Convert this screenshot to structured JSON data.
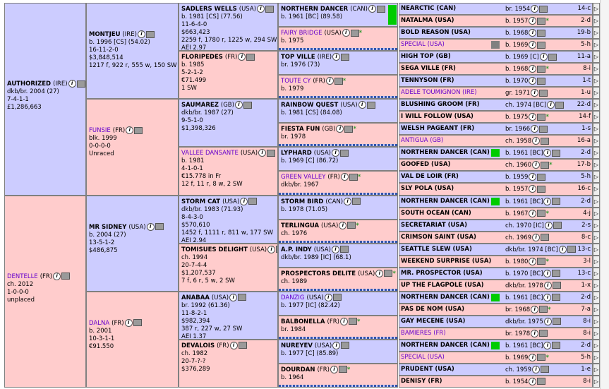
{
  "gen1": [
    {
      "name": "AUTHORIZED",
      "country": "(IRE)",
      "lines": [
        "dkb/br. 2004 (27)",
        "7-4-1-1",
        "£1,286,663"
      ],
      "sex": "m",
      "link": false
    },
    {
      "name": "DENTELLE",
      "country": "(FR)",
      "lines": [
        "ch. 2012",
        "1-0-0-0",
        "unplaced"
      ],
      "sex": "f",
      "link": true
    }
  ],
  "gen2": [
    {
      "name": "MONTJEU",
      "country": "(IRE)",
      "lines": [
        "b. 1996 [CS] (54.02)",
        "16-11-2-0",
        "$3,848,514",
        "1217 f, 922 r, 555 w, 150 SW"
      ],
      "sex": "m",
      "link": false
    },
    {
      "name": "FUNSIE",
      "country": "(FR)",
      "lines": [
        "blk. 1999",
        "0-0-0-0",
        "Unraced"
      ],
      "sex": "f",
      "link": true
    },
    {
      "name": "MR SIDNEY",
      "country": "(USA)",
      "lines": [
        "b. 2004 (27)",
        "13-5-1-2",
        "$486,875"
      ],
      "sex": "m",
      "link": false
    },
    {
      "name": "DALNA",
      "country": "(FR)",
      "lines": [
        "b. 2001",
        "10-3-1-1",
        "€91.550"
      ],
      "sex": "f",
      "link": true
    }
  ],
  "gen3": [
    {
      "name": "SADLERS WELLS",
      "country": "(USA)",
      "lines": [
        "b. 1981 [CS] (77.56)",
        "11-6-4-0",
        "$663,423",
        "2259 f, 1780 r, 1225 w, 294 SW",
        "AEI 2.97"
      ],
      "sex": "m",
      "link": false
    },
    {
      "name": "FLORIPEDES",
      "country": "(FR)",
      "lines": [
        "b. 1985",
        "5-2-1-2",
        "€71.499",
        "1 SW"
      ],
      "sex": "f",
      "link": false
    },
    {
      "name": "SAUMAREZ",
      "country": "(GB)",
      "lines": [
        "dkb/br. 1987 (27)",
        "9-5-1-0",
        "$1,398,326"
      ],
      "sex": "m",
      "link": false
    },
    {
      "name": "VALLEE DANSANTE",
      "country": "(USA)",
      "lines": [
        "b. 1981",
        "4-1-0-1",
        "€15.778 in Fr",
        "12 f, 11 r, 8 w, 2 SW"
      ],
      "sex": "f",
      "link": true
    },
    {
      "name": "STORM CAT",
      "country": "(USA)",
      "lines": [
        "dkb/br. 1983 (71.93)",
        "8-4-3-0",
        "$570,610",
        "1452 f, 1111 r, 811 w, 177 SW",
        "AEI 2.94"
      ],
      "sex": "m",
      "link": false
    },
    {
      "name": "TOMISUES DELIGHT",
      "country": "(USA)",
      "lines": [
        "ch. 1994",
        "20-7-4-4",
        "$1,207,537",
        "7 f, 6 r, 5 w, 2 SW"
      ],
      "sex": "f",
      "link": false
    },
    {
      "name": "ANABAA",
      "country": "(USA)",
      "lines": [
        "br. 1992 (61.36)",
        "11-8-2-1",
        "$982,394",
        "387 r, 227 w, 27 SW",
        "AEI 1.37"
      ],
      "sex": "m",
      "link": false
    },
    {
      "name": "DEVALOIS",
      "country": "(FR)",
      "lines": [
        "ch. 1982",
        "20-7-?-?",
        "$376,289"
      ],
      "sex": "f",
      "link": false
    }
  ],
  "gen4": [
    {
      "name": "NORTHERN DANCER",
      "country": "(CAN)",
      "lines": [
        "b. 1961 [BC] (89.58)"
      ],
      "sex": "m",
      "link": false,
      "green": true
    },
    {
      "name": "FAIRY BRIDGE",
      "country": "(USA)",
      "lines": [
        "b. 1975"
      ],
      "sex": "f",
      "link": true
    },
    {
      "name": "TOP VILLE",
      "country": "(IRE)",
      "lines": [
        "br. 1976 (73)"
      ],
      "sex": "m",
      "link": false
    },
    {
      "name": "TOUTE CY",
      "country": "(FR)",
      "lines": [
        "b. 1979"
      ],
      "sex": "f",
      "link": true
    },
    {
      "name": "RAINBOW QUEST",
      "country": "(USA)",
      "lines": [
        "b. 1981 [CS] (84.08)"
      ],
      "sex": "m",
      "link": false
    },
    {
      "name": "FIESTA FUN",
      "country": "(GB)",
      "lines": [
        "br. 1978"
      ],
      "sex": "f",
      "link": false
    },
    {
      "name": "LYPHARD",
      "country": "(USA)",
      "lines": [
        "b. 1969 [C] (86.72)"
      ],
      "sex": "m",
      "link": false
    },
    {
      "name": "GREEN VALLEY",
      "country": "(FR)",
      "lines": [
        "dkb/br. 1967"
      ],
      "sex": "f",
      "link": true
    },
    {
      "name": "STORM BIRD",
      "country": "(CAN)",
      "lines": [
        "b. 1978 (71.05)"
      ],
      "sex": "m",
      "link": false
    },
    {
      "name": "TERLINGUA",
      "country": "(USA)",
      "lines": [
        "ch. 1976"
      ],
      "sex": "f",
      "link": false
    },
    {
      "name": "A.P. INDY",
      "country": "(USA)",
      "lines": [
        "dkb/br. 1989 [IC] (68.1)"
      ],
      "sex": "m",
      "link": false
    },
    {
      "name": "PROSPECTORS DELITE",
      "country": "(USA)",
      "lines": [
        "ch. 1989"
      ],
      "sex": "f",
      "link": false
    },
    {
      "name": "DANZIG",
      "country": "(USA)",
      "lines": [
        "b. 1977 [IC] (82.42)"
      ],
      "sex": "m",
      "link": true
    },
    {
      "name": "BALBONELLA",
      "country": "(FR)",
      "lines": [
        "br. 1984"
      ],
      "sex": "f",
      "link": false
    },
    {
      "name": "NUREYEV",
      "country": "(USA)",
      "lines": [
        "b. 1977 [C] (85.89)"
      ],
      "sex": "m",
      "link": false
    },
    {
      "name": "DOURDAN",
      "country": "(FR)",
      "lines": [
        "b. 1964"
      ],
      "sex": "f",
      "link": false
    }
  ],
  "gen5": [
    {
      "name": "NEARCTIC (CAN)",
      "year": "br. 1954",
      "fam": "14-c",
      "sex": "m"
    },
    {
      "name": "NATALMA (USA)",
      "year": "b. 1957",
      "fam": "2-d",
      "sex": "f"
    },
    {
      "name": "BOLD REASON (USA)",
      "year": "b. 1968",
      "fam": "19-b",
      "sex": "m"
    },
    {
      "name": "SPECIAL (USA)",
      "year": "b. 1969",
      "fam": "5-h",
      "sex": "f",
      "link": true
    },
    {
      "name": "HIGH TOP (GB)",
      "year": "b. 1969 [C]",
      "fam": "11-a",
      "sex": "m"
    },
    {
      "name": "SEGA VILLE (FR)",
      "year": "b. 1968",
      "fam": "8-i",
      "sex": "f"
    },
    {
      "name": "TENNYSON (FR)",
      "year": "b. 1970",
      "fam": "1-t",
      "sex": "m"
    },
    {
      "name": "ADELE TOUMIGNON (IRE)",
      "year": "gr. 1971",
      "fam": "1-u",
      "sex": "f",
      "link": true
    },
    {
      "name": "BLUSHING GROOM (FR)",
      "year": "ch. 1974 [BC]",
      "fam": "22-d",
      "sex": "m"
    },
    {
      "name": "I WILL FOLLOW (USA)",
      "year": "b. 1975",
      "fam": "14-f",
      "sex": "f"
    },
    {
      "name": "WELSH PAGEANT (FR)",
      "year": "br. 1966",
      "fam": "1-s",
      "sex": "m"
    },
    {
      "name": "ANTIGUA (GB)",
      "year": "ch. 1958",
      "fam": "16-a",
      "sex": "f",
      "link": true
    },
    {
      "name": "NORTHERN DANCER (CAN)",
      "year": "b. 1961 [BC]",
      "fam": "2-d",
      "sex": "m"
    },
    {
      "name": "GOOFED (USA)",
      "year": "ch. 1960",
      "fam": "17-b",
      "sex": "f"
    },
    {
      "name": "VAL DE LOIR (FR)",
      "year": "b. 1959",
      "fam": "5-h",
      "sex": "m"
    },
    {
      "name": "SLY POLA (USA)",
      "year": "b. 1957",
      "fam": "16-c",
      "sex": "f"
    },
    {
      "name": "NORTHERN DANCER (CAN)",
      "year": "b. 1961 [BC]",
      "fam": "2-d",
      "sex": "m"
    },
    {
      "name": "SOUTH OCEAN (CAN)",
      "year": "b. 1967",
      "fam": "4-j",
      "sex": "f"
    },
    {
      "name": "SECRETARIAT (USA)",
      "year": "ch. 1970 [IC]",
      "fam": "2-s",
      "sex": "m"
    },
    {
      "name": "CRIMSON SAINT (USA)",
      "year": "ch. 1969",
      "fam": "8-c",
      "sex": "f"
    },
    {
      "name": "SEATTLE SLEW (USA)",
      "year": "dkb/br. 1974 [BC]",
      "fam": "13-c",
      "sex": "m"
    },
    {
      "name": "WEEKEND SURPRISE (USA)",
      "year": "b. 1980",
      "fam": "3-l",
      "sex": "f"
    },
    {
      "name": "MR. PROSPECTOR (USA)",
      "year": "b. 1970 [BC]",
      "fam": "13-c",
      "sex": "m"
    },
    {
      "name": "UP THE FLAGPOLE (USA)",
      "year": "dkb/br. 1978",
      "fam": "1-x",
      "sex": "f"
    },
    {
      "name": "NORTHERN DANCER (CAN)",
      "year": "b. 1961 [BC]",
      "fam": "2-d",
      "sex": "m"
    },
    {
      "name": "PAS DE NOM (USA)",
      "year": "br. 1968",
      "fam": "7-a",
      "sex": "f"
    },
    {
      "name": "GAY MECENE (USA)",
      "year": "dkb/br. 1975",
      "fam": "8-i",
      "sex": "m"
    },
    {
      "name": "BAMIERES (FR)",
      "year": "br. 1978",
      "fam": "8-i",
      "sex": "f",
      "link": true
    },
    {
      "name": "NORTHERN DANCER (CAN)",
      "year": "b. 1961 [BC]",
      "fam": "2-d",
      "sex": "m"
    },
    {
      "name": "SPECIAL (USA)",
      "year": "b. 1969",
      "fam": "5-h",
      "sex": "f",
      "link": true
    },
    {
      "name": "PRUDENT (USA)",
      "year": "ch. 1959",
      "fam": "1-e",
      "sex": "m"
    },
    {
      "name": "DENISY (FR)",
      "year": "b. 1954",
      "fam": "8-i",
      "sex": "f"
    }
  ],
  "colors": {
    "male": "#ccccff",
    "female": "#ffcccc",
    "link": "#6600cc",
    "green": "#00cc00"
  }
}
